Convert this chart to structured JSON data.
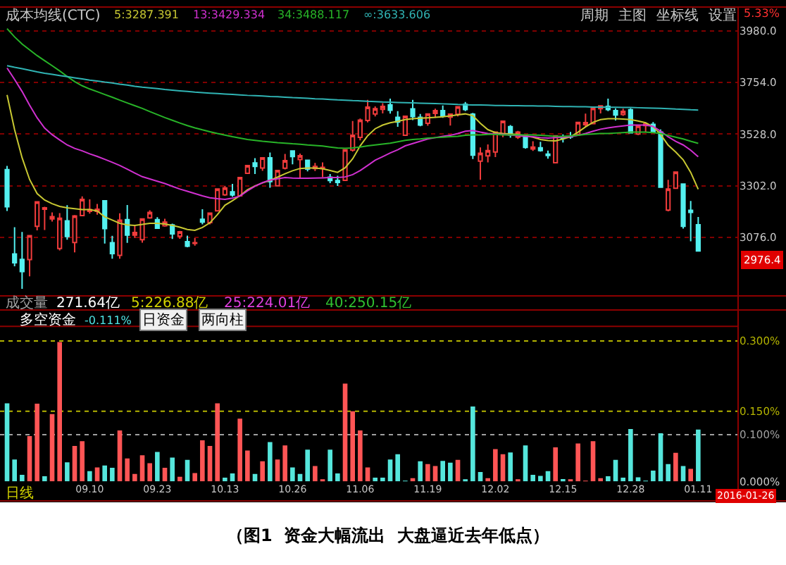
{
  "chart_data": [
    {
      "type": "candlestick",
      "legend_title": "成本均线(CTC)",
      "legend": "top left",
      "grid": "y",
      "tick_labels": "y",
      "categories": [
        null,
        null,
        null,
        null,
        null,
        null,
        null,
        null,
        null,
        null,
        null,
        "09.10",
        null,
        null,
        null,
        null,
        null,
        null,
        null,
        null,
        "09.23",
        null,
        null,
        null,
        null,
        null,
        null,
        null,
        null,
        "10.13",
        null,
        null,
        null,
        null,
        null,
        null,
        null,
        null,
        "10.26",
        null,
        null,
        null,
        null,
        null,
        null,
        null,
        null,
        "11.06",
        null,
        null,
        null,
        null,
        null,
        null,
        null,
        null,
        "11.19",
        null,
        null,
        null,
        null,
        null,
        null,
        null,
        null,
        "12.02",
        null,
        null,
        null,
        null,
        null,
        null,
        null,
        null,
        "12.15",
        null,
        null,
        null,
        null,
        null,
        null,
        null,
        null,
        "12.28",
        null,
        null,
        null,
        null,
        null,
        null,
        null,
        null,
        "01.11"
      ],
      "ohlc": [
        [
          3373,
          3389,
          3192,
          3210
        ],
        [
          3004,
          3121,
          2950,
          2965
        ],
        [
          2980,
          3100,
          2851,
          2927
        ],
        [
          2979,
          3084,
          2906,
          3084
        ],
        [
          3125,
          3233,
          3107,
          3232
        ],
        [
          3200,
          3210,
          3109,
          3206
        ],
        [
          3157,
          3186,
          3146,
          3167
        ],
        [
          3028,
          3183,
          3019,
          3160
        ],
        [
          3149,
          3217,
          3066,
          3080
        ],
        [
          3054,
          3174,
          3011,
          3170
        ],
        [
          3172,
          3256,
          3169,
          3243
        ],
        [
          3190,
          3243,
          3180,
          3198
        ],
        [
          3190,
          3223,
          3176,
          3200
        ],
        [
          3237,
          3239,
          3049,
          3115
        ],
        [
          3053,
          3083,
          2983,
          3005
        ],
        [
          2998,
          3182,
          2983,
          3152
        ],
        [
          3154,
          3218,
          3052,
          3086
        ],
        [
          3086,
          3126,
          3074,
          3098
        ],
        [
          3066,
          3157,
          3053,
          3157
        ],
        [
          3162,
          3195,
          3158,
          3186
        ],
        [
          3154,
          3165,
          3113,
          3116
        ],
        [
          3127,
          3158,
          3123,
          3143
        ],
        [
          3131,
          3136,
          3069,
          3092
        ],
        [
          3082,
          3105,
          3070,
          3101
        ],
        [
          3058,
          3084,
          3033,
          3038
        ],
        [
          3050,
          3073,
          3040,
          3053
        ],
        [
          3156,
          3200,
          3133,
          3143
        ],
        [
          3141,
          3185,
          3133,
          3183
        ],
        [
          3193,
          3288,
          3192,
          3288
        ],
        [
          3263,
          3302,
          3258,
          3293
        ],
        [
          3276,
          3311,
          3254,
          3262
        ],
        [
          3258,
          3339,
          3255,
          3338
        ],
        [
          3357,
          3394,
          3354,
          3391
        ],
        [
          3402,
          3423,
          3354,
          3387
        ],
        [
          3380,
          3426,
          3368,
          3425
        ],
        [
          3425,
          3448,
          3294,
          3321
        ],
        [
          3302,
          3370,
          3299,
          3369
        ],
        [
          3379,
          3442,
          3374,
          3412
        ],
        [
          3455,
          3457,
          3396,
          3430
        ],
        [
          3417,
          3443,
          3332,
          3434
        ],
        [
          3414,
          3417,
          3365,
          3375
        ],
        [
          3378,
          3402,
          3367,
          3387
        ],
        [
          3378,
          3405,
          3340,
          3383
        ],
        [
          3340,
          3354,
          3314,
          3325
        ],
        [
          3325,
          3346,
          3301,
          3317
        ],
        [
          3326,
          3460,
          3324,
          3460
        ],
        [
          3459,
          3586,
          3452,
          3523
        ],
        [
          3514,
          3597,
          3501,
          3590
        ],
        [
          3588,
          3678,
          3580,
          3647
        ],
        [
          3617,
          3650,
          3606,
          3640
        ],
        [
          3637,
          3664,
          3619,
          3650
        ],
        [
          3657,
          3684,
          3618,
          3633
        ],
        [
          3602,
          3629,
          3560,
          3581
        ],
        [
          3523,
          3607,
          3521,
          3607
        ],
        [
          3639,
          3678,
          3590,
          3605
        ],
        [
          3602,
          3617,
          3563,
          3568
        ],
        [
          3576,
          3617,
          3565,
          3617
        ],
        [
          3619,
          3640,
          3600,
          3631
        ],
        [
          3631,
          3654,
          3600,
          3610
        ],
        [
          3603,
          3619,
          3566,
          3616
        ],
        [
          3615,
          3648,
          3606,
          3648
        ],
        [
          3659,
          3669,
          3629,
          3636
        ],
        [
          3616,
          3621,
          3419,
          3436
        ],
        [
          3410,
          3470,
          3328,
          3445
        ],
        [
          3433,
          3483,
          3405,
          3456
        ],
        [
          3450,
          3538,
          3428,
          3537
        ],
        [
          3527,
          3586,
          3515,
          3585
        ],
        [
          3561,
          3568,
          3513,
          3525
        ],
        [
          3515,
          3543,
          3507,
          3537
        ],
        [
          3518,
          3518,
          3465,
          3470
        ],
        [
          3463,
          3497,
          3455,
          3472
        ],
        [
          3469,
          3495,
          3452,
          3456
        ],
        [
          3441,
          3456,
          3421,
          3435
        ],
        [
          3403,
          3521,
          3401,
          3521
        ],
        [
          3514,
          3527,
          3492,
          3510
        ],
        [
          3518,
          3538,
          3508,
          3516
        ],
        [
          3527,
          3580,
          3524,
          3580
        ],
        [
          3570,
          3618,
          3560,
          3579
        ],
        [
          3574,
          3643,
          3572,
          3642
        ],
        [
          3640,
          3653,
          3619,
          3652
        ],
        [
          3650,
          3684,
          3629,
          3636
        ],
        [
          3631,
          3641,
          3588,
          3612
        ],
        [
          3614,
          3640,
          3608,
          3628
        ],
        [
          3635,
          3642,
          3533,
          3534
        ],
        [
          3529,
          3564,
          3524,
          3564
        ],
        [
          3566,
          3573,
          3538,
          3573
        ],
        [
          3571,
          3581,
          3537,
          3539
        ],
        [
          3537,
          3549,
          3295,
          3296
        ],
        [
          3196,
          3328,
          3190,
          3288
        ],
        [
          3291,
          3362,
          3289,
          3362
        ],
        [
          3310,
          3310,
          3115,
          3125
        ],
        [
          3195,
          3236,
          3059,
          3186
        ],
        [
          3132,
          3166,
          3017,
          3017
        ]
      ],
      "colors": [
        "#54f0f0",
        "#54f0f0",
        "#54f0f0",
        "#f03c3c",
        "#f03c3c",
        "#f03c3c",
        "#f03c3c",
        "#f03c3c",
        "#54f0f0",
        "#f03c3c",
        "#f03c3c",
        "#f03c3c",
        "#f03c3c",
        "#54f0f0",
        "#54f0f0",
        "#f03c3c",
        "#54f0f0",
        "#f03c3c",
        "#f03c3c",
        "#f03c3c",
        "#54f0f0",
        "#f03c3c",
        "#54f0f0",
        "#f03c3c",
        "#54f0f0",
        "#f03c3c",
        "#54f0f0",
        "#f03c3c",
        "#f03c3c",
        "#f03c3c",
        "#54f0f0",
        "#f03c3c",
        "#f03c3c",
        "#54f0f0",
        "#f03c3c",
        "#54f0f0",
        "#f03c3c",
        "#f03c3c",
        "#54f0f0",
        "#f03c3c",
        "#54f0f0",
        "#f03c3c",
        "#f03c3c",
        "#54f0f0",
        "#54f0f0",
        "#f03c3c",
        "#f03c3c",
        "#f03c3c",
        "#f03c3c",
        "#f03c3c",
        "#f03c3c",
        "#54f0f0",
        "#54f0f0",
        "#f03c3c",
        "#54f0f0",
        "#54f0f0",
        "#f03c3c",
        "#f03c3c",
        "#54f0f0",
        "#f03c3c",
        "#f03c3c",
        "#54f0f0",
        "#54f0f0",
        "#f03c3c",
        "#f03c3c",
        "#f03c3c",
        "#f03c3c",
        "#54f0f0",
        "#f03c3c",
        "#54f0f0",
        "#f03c3c",
        "#54f0f0",
        "#54f0f0",
        "#f03c3c",
        "#54f0f0",
        "#54f0f0",
        "#f03c3c",
        "#f03c3c",
        "#f03c3c",
        "#f03c3c",
        "#54f0f0",
        "#54f0f0",
        "#f03c3c",
        "#54f0f0",
        "#f03c3c",
        "#f03c3c",
        "#54f0f0",
        "#54f0f0",
        "#f03c3c",
        "#f03c3c",
        "#54f0f0",
        "#54f0f0",
        "#54f0f0"
      ],
      "series": [
        {
          "type": "line",
          "name": "5:3287.391",
          "color": "#c8c832",
          "values": [
            3700,
            3548,
            3425,
            3330,
            3268,
            3240,
            3224,
            3212,
            3206,
            3202,
            3198,
            3198,
            3192,
            3166,
            3152,
            3138,
            3131,
            3129,
            3133,
            3138,
            3138,
            3135,
            3129,
            3121,
            3111,
            3107,
            3120,
            3140,
            3176,
            3217,
            3237,
            3259,
            3285,
            3302,
            3315,
            3326,
            3340,
            3355,
            3368,
            3378,
            3380,
            3380,
            3377,
            3369,
            3361,
            3381,
            3420,
            3477,
            3521,
            3552,
            3568,
            3578,
            3584,
            3592,
            3596,
            3598,
            3600,
            3602,
            3604,
            3608,
            3613,
            3617,
            3609,
            3576,
            3548,
            3535,
            3531,
            3529,
            3527,
            3521,
            3515,
            3505,
            3500,
            3499,
            3507,
            3517,
            3537,
            3560,
            3580,
            3592,
            3596,
            3596,
            3594,
            3592,
            3586,
            3578,
            3560,
            3527,
            3480,
            3450,
            3416,
            3361,
            3287
          ]
        },
        {
          "type": "line",
          "name": "13:3429.334",
          "color": "#d030d0",
          "values": [
            3818,
            3768,
            3715,
            3655,
            3600,
            3555,
            3526,
            3503,
            3481,
            3466,
            3455,
            3442,
            3431,
            3418,
            3405,
            3391,
            3375,
            3358,
            3342,
            3332,
            3322,
            3312,
            3300,
            3288,
            3278,
            3268,
            3258,
            3250,
            3246,
            3243,
            3248,
            3257,
            3280,
            3300,
            3316,
            3327,
            3333,
            3338,
            3336,
            3335,
            3335,
            3336,
            3337,
            3338,
            3338,
            3341,
            3351,
            3369,
            3391,
            3414,
            3430,
            3446,
            3460,
            3477,
            3487,
            3497,
            3507,
            3513,
            3519,
            3523,
            3531,
            3541,
            3544,
            3537,
            3531,
            3529,
            3527,
            3525,
            3521,
            3519,
            3517,
            3513,
            3511,
            3513,
            3515,
            3517,
            3523,
            3531,
            3541,
            3550,
            3556,
            3560,
            3564,
            3568,
            3568,
            3568,
            3562,
            3541,
            3517,
            3497,
            3481,
            3458,
            3429
          ]
        },
        {
          "type": "line",
          "name": "34:3488.117",
          "color": "#28b428",
          "values": [
            3990,
            3954,
            3923,
            3897,
            3872,
            3850,
            3828,
            3805,
            3781,
            3758,
            3740,
            3726,
            3714,
            3702,
            3690,
            3677,
            3665,
            3653,
            3641,
            3627,
            3614,
            3601,
            3589,
            3577,
            3566,
            3556,
            3547,
            3539,
            3531,
            3524,
            3517,
            3511,
            3505,
            3501,
            3497,
            3494,
            3491,
            3489,
            3486,
            3484,
            3481,
            3479,
            3476,
            3472,
            3468,
            3466,
            3468,
            3472,
            3477,
            3481,
            3485,
            3489,
            3495,
            3501,
            3505,
            3507,
            3511,
            3513,
            3515,
            3517,
            3519,
            3523,
            3525,
            3525,
            3527,
            3527,
            3525,
            3525,
            3525,
            3525,
            3525,
            3523,
            3521,
            3519,
            3519,
            3521,
            3523,
            3527,
            3529,
            3531,
            3531,
            3533,
            3535,
            3537,
            3537,
            3537,
            3535,
            3531,
            3523,
            3515,
            3507,
            3497,
            3488
          ]
        },
        {
          "type": "line",
          "name": "∞:3633.606",
          "color": "#30b4b4",
          "values": [
            3828,
            3821,
            3815,
            3808,
            3801,
            3795,
            3790,
            3785,
            3780,
            3775,
            3770,
            3765,
            3761,
            3756,
            3752,
            3747,
            3743,
            3738,
            3734,
            3731,
            3728,
            3724,
            3721,
            3718,
            3715,
            3712,
            3710,
            3708,
            3706,
            3704,
            3702,
            3700,
            3698,
            3697,
            3695,
            3693,
            3692,
            3690,
            3688,
            3687,
            3685,
            3683,
            3682,
            3680,
            3678,
            3677,
            3675,
            3674,
            3672,
            3671,
            3669,
            3668,
            3667,
            3666,
            3665,
            3664,
            3663,
            3662,
            3661,
            3660,
            3658,
            3657,
            3656,
            3656,
            3655,
            3654,
            3654,
            3653,
            3653,
            3652,
            3652,
            3651,
            3651,
            3650,
            3649,
            3649,
            3648,
            3648,
            3647,
            3647,
            3646,
            3646,
            3645,
            3645,
            3644,
            3643,
            3642,
            3641,
            3640,
            3638,
            3637,
            3635,
            3634
          ]
        }
      ],
      "ylim": [
        2820,
        4085
      ],
      "yticks": [
        {
          "value": 3076,
          "label": "3076.0"
        },
        {
          "value": 3302,
          "label": "3302.0"
        },
        {
          "value": 3528,
          "label": "3528.0"
        },
        {
          "value": 3754,
          "label": "3754.0"
        },
        {
          "value": 3980,
          "label": "3980.0"
        }
      ],
      "annotations": [
        "周期",
        "主图",
        "坐标线",
        "设置",
        "5.33%",
        "2976.4"
      ]
    },
    {
      "type": "bar",
      "title": "多空资金",
      "categories": [
        null,
        null,
        null,
        null,
        null,
        null,
        null,
        null,
        null,
        null,
        null,
        "09.10",
        null,
        null,
        null,
        null,
        null,
        null,
        null,
        null,
        "09.23",
        null,
        null,
        null,
        null,
        null,
        null,
        null,
        null,
        "10.13",
        null,
        null,
        null,
        null,
        null,
        null,
        null,
        null,
        "10.26",
        null,
        null,
        null,
        null,
        null,
        null,
        null,
        null,
        "11.06",
        null,
        null,
        null,
        null,
        null,
        null,
        null,
        null,
        "11.19",
        null,
        null,
        null,
        null,
        null,
        null,
        null,
        null,
        "12.02",
        null,
        null,
        null,
        null,
        null,
        null,
        null,
        null,
        "12.15",
        null,
        null,
        null,
        null,
        null,
        null,
        null,
        null,
        "12.28",
        null,
        null,
        null,
        null,
        null,
        null,
        null,
        null,
        "01.11"
      ],
      "values": [
        0.167,
        0.047,
        0.014,
        0.097,
        0.166,
        0.011,
        0.144,
        0.298,
        0.041,
        0.076,
        0.086,
        0.022,
        0.03,
        0.034,
        0.029,
        0.109,
        0.049,
        0.016,
        0.056,
        0.039,
        0.063,
        0.029,
        0.051,
        0.01,
        0.046,
        0.018,
        0.088,
        0.076,
        0.167,
        0.008,
        0.017,
        0.134,
        0.066,
        0.016,
        0.043,
        0.084,
        0.047,
        0.077,
        0.03,
        0.016,
        0.068,
        0.033,
        0.002,
        0.068,
        0.017,
        0.209,
        0.15,
        0.109,
        0.03,
        0.008,
        0.008,
        0.047,
        0.058,
        0.001,
        0.007,
        0.043,
        0.037,
        0.033,
        0.044,
        0.04,
        0.046,
        0.004,
        0.16,
        0.02,
        0.007,
        0.069,
        0.058,
        0.062,
        0.002,
        0.077,
        0.014,
        0.012,
        0.022,
        0.073,
        0.005,
        0.004,
        0.081,
        0.001,
        0.086,
        0.007,
        0.011,
        0.046,
        0.008,
        0.112,
        0.009,
        0.001,
        0.023,
        0.103,
        0.037,
        0.061,
        0.033,
        0.027,
        0.111
      ],
      "colors": [
        "#55e6dc",
        "#55e6dc",
        "#55e6dc",
        "#ff5555",
        "#ff5555",
        "#55e6dc",
        "#ff5555",
        "#ff5555",
        "#55e6dc",
        "#ff5555",
        "#ff5555",
        "#55e6dc",
        "#ff5555",
        "#55e6dc",
        "#55e6dc",
        "#ff5555",
        "#ff5555",
        "#ff5555",
        "#ff5555",
        "#ff5555",
        "#55e6dc",
        "#ff5555",
        "#55e6dc",
        "#ff5555",
        "#55e6dc",
        "#ff5555",
        "#ff5555",
        "#ff5555",
        "#ff5555",
        "#55e6dc",
        "#55e6dc",
        "#ff5555",
        "#ff5555",
        "#55e6dc",
        "#ff5555",
        "#55e6dc",
        "#ff5555",
        "#ff5555",
        "#55e6dc",
        "#55e6dc",
        "#55e6dc",
        "#ff5555",
        "#ff5555",
        "#55e6dc",
        "#55e6dc",
        "#ff5555",
        "#ff5555",
        "#ff5555",
        "#ff5555",
        "#55e6dc",
        "#55e6dc",
        "#55e6dc",
        "#55e6dc",
        "#55e6dc",
        "#ff5555",
        "#55e6dc",
        "#ff5555",
        "#ff5555",
        "#55e6dc",
        "#55e6dc",
        "#ff5555",
        "#55e6dc",
        "#55e6dc",
        "#55e6dc",
        "#ff5555",
        "#ff5555",
        "#ff5555",
        "#55e6dc",
        "#ff5555",
        "#55e6dc",
        "#55e6dc",
        "#55e6dc",
        "#55e6dc",
        "#ff5555",
        "#55e6dc",
        "#ff5555",
        "#ff5555",
        "#ff5555",
        "#ff5555",
        "#ff5555",
        "#55e6dc",
        "#55e6dc",
        "#55e6dc",
        "#55e6dc",
        "#55e6dc",
        "#55e6dc",
        "#55e6dc",
        "#55e6dc",
        "#55e6dc",
        "#ff5555",
        "#55e6dc",
        "#ff5555",
        "#55e6dc"
      ],
      "ylim": [
        0,
        0.33
      ],
      "yticks": [
        {
          "value": 0,
          "label": "0.000%"
        },
        {
          "value": 0.1,
          "label": "0.100%"
        },
        {
          "value": 0.15,
          "label": "0.150%"
        },
        {
          "value": 0.3,
          "label": "0.300%"
        }
      ],
      "ref_lines": [
        {
          "axis": "y",
          "value": 0.3,
          "color": "#b4b400",
          "line_style": "dotted"
        },
        {
          "axis": "y",
          "value": 0.15,
          "color": "#b4b400",
          "line_style": "dotted"
        },
        {
          "axis": "y",
          "value": 0.1,
          "color": "#a0a0a0",
          "line_style": "dotted"
        }
      ],
      "annotations": [
        "-0.111%",
        "日资金",
        "两向柱",
        "成交量",
        "271.64亿",
        "5:226.88亿",
        "25:224.01亿",
        "40:250.15亿",
        "日线",
        "2016-01-26",
        "（图1  资金大幅流出  大盘逼近去年低点）"
      ]
    }
  ]
}
